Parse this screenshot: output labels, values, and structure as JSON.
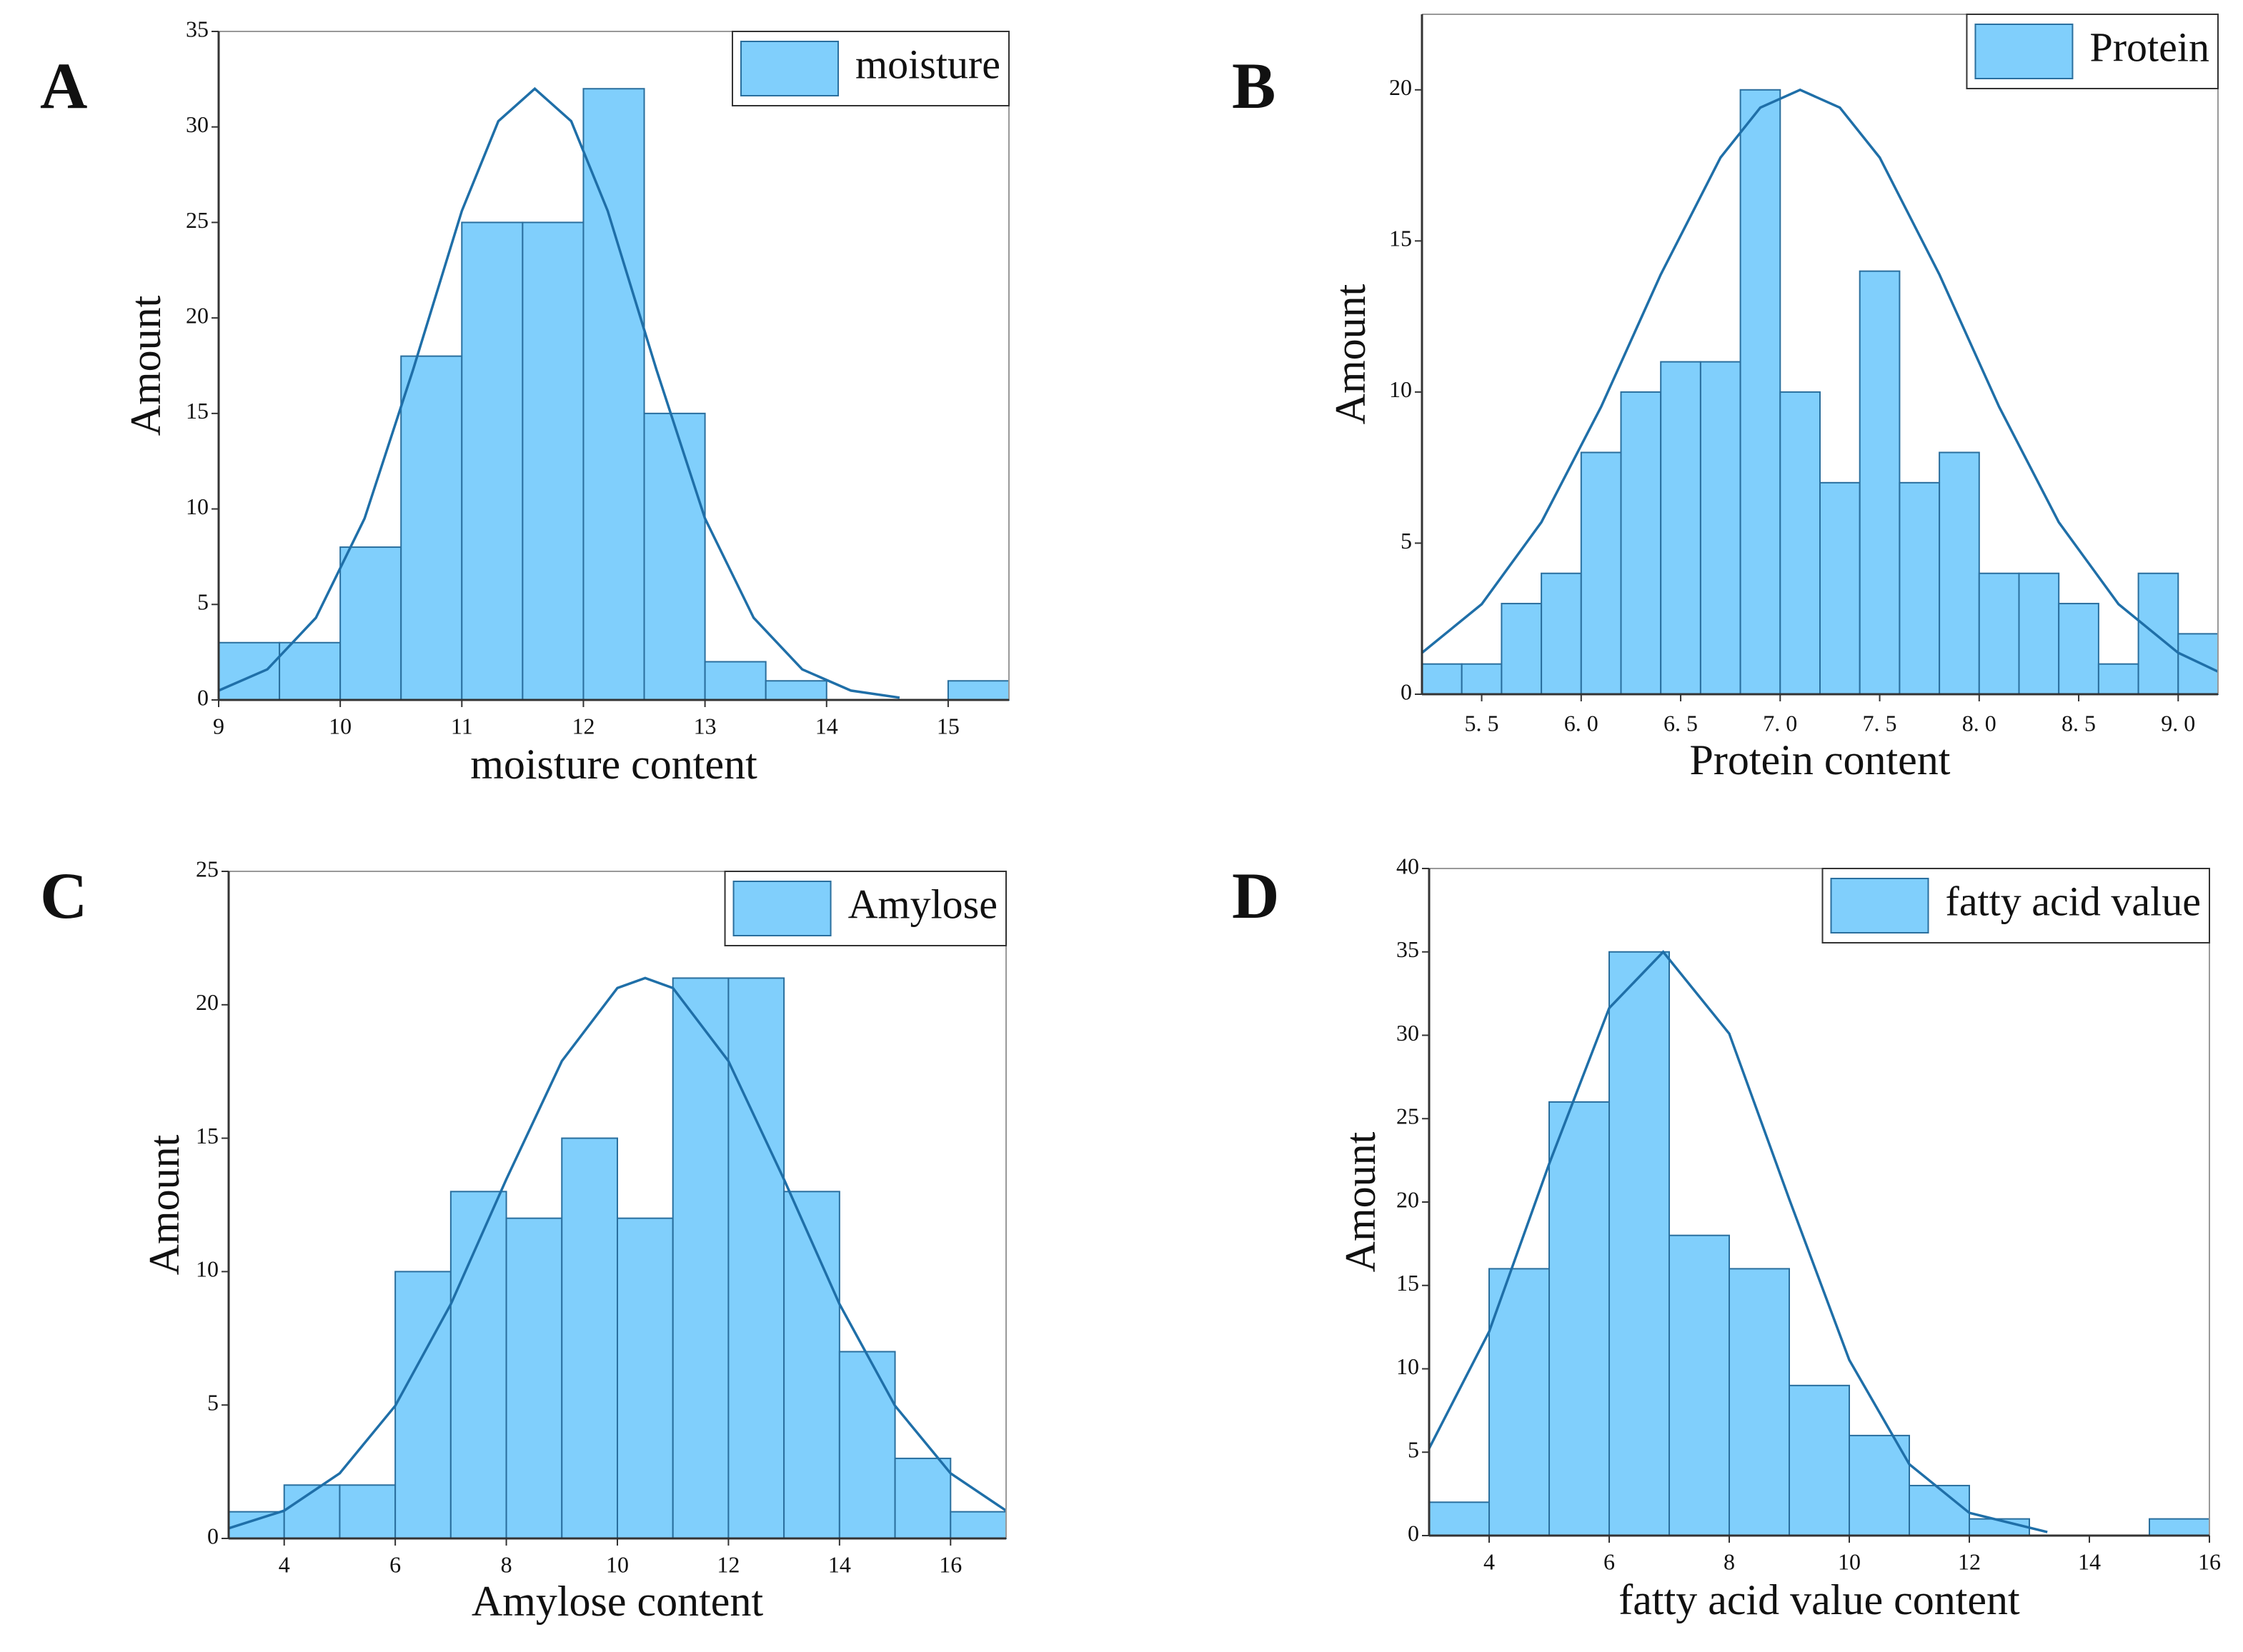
{
  "chart_data": [
    {
      "type": "histogram",
      "panel_label": "A",
      "xlabel": "moisture content",
      "ylabel": "Amount",
      "bins": [
        9,
        9.5,
        10,
        10.5,
        11,
        11.5,
        12,
        12.5,
        13,
        13.5,
        14,
        14.5,
        15,
        15.5
      ],
      "series": [
        {
          "name": "moisture",
          "color": "#80cffc",
          "values": [
            3,
            3,
            8,
            18,
            25,
            25,
            32,
            15,
            2,
            1,
            0,
            0,
            1
          ]
        }
      ],
      "curve": {
        "color": "#1f6fa8",
        "x": [
          9,
          9.4,
          9.8,
          10.2,
          10.6,
          11,
          11.3,
          11.6,
          11.9,
          12.2,
          12.6,
          13,
          13.4,
          13.8,
          14.2,
          14.6
        ],
        "values": [
          0.49,
          1.6,
          4.3,
          9.5,
          17.3,
          25.6,
          30.3,
          32,
          30.3,
          25.6,
          17.3,
          9.5,
          4.3,
          1.6,
          0.49,
          0.12
        ]
      },
      "xlim": [
        9,
        15.5
      ],
      "xticks": [
        9,
        10,
        11,
        12,
        13,
        14,
        15
      ],
      "ylim": [
        0,
        35
      ],
      "yticks": [
        0,
        5,
        10,
        15,
        20,
        25,
        30,
        35
      ],
      "legend": "upper right"
    },
    {
      "type": "histogram",
      "panel_label": "B",
      "xlabel": "Protein content",
      "ylabel": "Amount",
      "bins": [
        5.2,
        5.4,
        5.6,
        5.8,
        6.0,
        6.2,
        6.4,
        6.6,
        6.8,
        7.0,
        7.2,
        7.4,
        7.6,
        7.8,
        8.0,
        8.2,
        8.4,
        8.6,
        8.8,
        9.0,
        9.2
      ],
      "series": [
        {
          "name": "Protein",
          "color": "#80cffc",
          "values": [
            1,
            1,
            3,
            4,
            8,
            10,
            11,
            11,
            20,
            10,
            7,
            14,
            7,
            8,
            4,
            4,
            3,
            1,
            4,
            2
          ]
        }
      ],
      "curve": {
        "color": "#1f6fa8",
        "x": [
          5.2,
          5.5,
          5.8,
          6.1,
          6.4,
          6.7,
          6.9,
          7.1,
          7.3,
          7.5,
          7.8,
          8.1,
          8.4,
          8.7,
          9.0,
          9.2
        ],
        "values": [
          1.37,
          2.98,
          5.69,
          9.51,
          13.89,
          17.76,
          19.41,
          20,
          19.41,
          17.76,
          13.89,
          9.51,
          5.69,
          2.98,
          1.37,
          0.75
        ]
      },
      "xlim": [
        5.2,
        9.2
      ],
      "xticks": [
        {
          "value": 5.5,
          "label": "5. 5"
        },
        {
          "value": 6.0,
          "label": "6. 0"
        },
        {
          "value": 6.5,
          "label": "6. 5"
        },
        {
          "value": 7.0,
          "label": "7. 0"
        },
        {
          "value": 7.5,
          "label": "7. 5"
        },
        {
          "value": 8.0,
          "label": "8. 0"
        },
        {
          "value": 8.5,
          "label": "8. 5"
        },
        {
          "value": 9.0,
          "label": "9. 0"
        }
      ],
      "ylim": [
        0,
        22.5
      ],
      "yticks": [
        0,
        5,
        10,
        15,
        20
      ],
      "legend": "upper right"
    },
    {
      "type": "histogram",
      "panel_label": "C",
      "xlabel": "Amylose content",
      "ylabel": "Amount",
      "bins": [
        3,
        4,
        5,
        6,
        7,
        8,
        9,
        10,
        11,
        12,
        13,
        14,
        15,
        16,
        17
      ],
      "series": [
        {
          "name": "Amylose",
          "color": "#80cffc",
          "values": [
            1,
            2,
            2,
            10,
            13,
            12,
            15,
            12,
            21,
            21,
            13,
            7,
            3,
            1
          ]
        }
      ],
      "curve": {
        "color": "#1f6fa8",
        "x": [
          3,
          4,
          5,
          6,
          7,
          8,
          9,
          10,
          10.5,
          11,
          12,
          13,
          14,
          15,
          16,
          17
        ],
        "values": [
          0.38,
          1.04,
          2.44,
          4.97,
          8.78,
          13.46,
          17.89,
          20.63,
          21,
          20.63,
          17.89,
          13.46,
          8.78,
          4.97,
          2.44,
          1.04
        ]
      },
      "xlim": [
        3,
        17
      ],
      "xticks": [
        4,
        6,
        8,
        10,
        12,
        14,
        16
      ],
      "ylim": [
        0,
        25
      ],
      "yticks": [
        0,
        5,
        10,
        15,
        20,
        25
      ],
      "legend": "upper right"
    },
    {
      "type": "histogram",
      "panel_label": "D",
      "xlabel": "fatty acid value content",
      "ylabel": "Amount",
      "bins": [
        3,
        4,
        5,
        6,
        7,
        8,
        9,
        10,
        11,
        12,
        13,
        14,
        15,
        16
      ],
      "series": [
        {
          "name": "fatty acid value",
          "color": "#80cffc",
          "values": [
            2,
            16,
            26,
            35,
            18,
            16,
            9,
            6,
            3,
            1,
            0,
            0,
            1
          ]
        }
      ],
      "curve": {
        "color": "#1f6fa8",
        "x": [
          3,
          4,
          5,
          6,
          6.9,
          8,
          9,
          10,
          11,
          12,
          13.3
        ],
        "values": [
          5.23,
          12.23,
          22.29,
          31.63,
          35,
          30.1,
          20.17,
          10.53,
          4.28,
          1.36,
          0.21
        ]
      },
      "xlim": [
        3,
        16
      ],
      "xticks": [
        4,
        6,
        8,
        10,
        12,
        14,
        16
      ],
      "ylim": [
        0,
        40
      ],
      "yticks": [
        0,
        5,
        10,
        15,
        20,
        25,
        30,
        35,
        40
      ],
      "legend": "upper right"
    }
  ]
}
